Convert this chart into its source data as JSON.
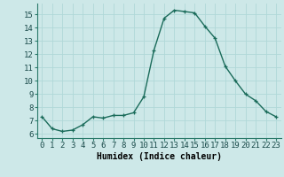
{
  "x": [
    0,
    1,
    2,
    3,
    4,
    5,
    6,
    7,
    8,
    9,
    10,
    11,
    12,
    13,
    14,
    15,
    16,
    17,
    18,
    19,
    20,
    21,
    22,
    23
  ],
  "y": [
    7.3,
    6.4,
    6.2,
    6.3,
    6.7,
    7.3,
    7.2,
    7.4,
    7.4,
    7.6,
    8.8,
    12.3,
    14.7,
    15.3,
    15.2,
    15.1,
    14.1,
    13.2,
    11.1,
    10.0,
    9.0,
    8.5,
    7.7,
    7.3
  ],
  "line_color": "#1a6b5a",
  "marker": "+",
  "marker_size": 3,
  "bg_color": "#cde8e8",
  "grid_color": "#b0d8d8",
  "xlabel": "Humidex (Indice chaleur)",
  "xlim": [
    -0.5,
    23.5
  ],
  "ylim": [
    5.7,
    15.8
  ],
  "yticks": [
    6,
    7,
    8,
    9,
    10,
    11,
    12,
    13,
    14,
    15
  ],
  "xticks": [
    0,
    1,
    2,
    3,
    4,
    5,
    6,
    7,
    8,
    9,
    10,
    11,
    12,
    13,
    14,
    15,
    16,
    17,
    18,
    19,
    20,
    21,
    22,
    23
  ],
  "label_fontsize": 7,
  "tick_fontsize": 6.5
}
